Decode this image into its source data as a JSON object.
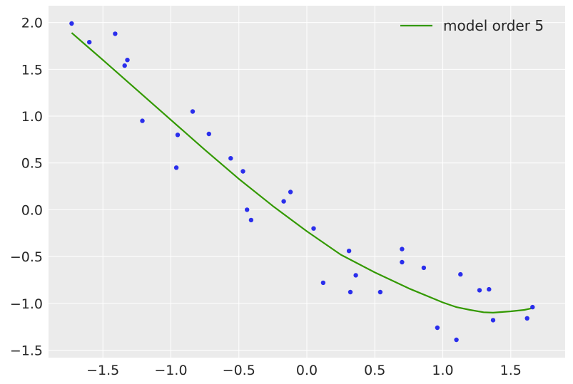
{
  "chart_data": {
    "type": "scatter",
    "title": "",
    "xlabel": "",
    "ylabel": "",
    "xlim": [
      -1.9,
      1.9
    ],
    "ylim": [
      -1.58,
      2.18
    ],
    "xticks": [
      -1.5,
      -1.0,
      -0.5,
      0.0,
      0.5,
      1.0,
      1.5
    ],
    "xtick_labels": [
      "−1.5",
      "−1.0",
      "−0.5",
      "0.0",
      "0.5",
      "1.0",
      "1.5"
    ],
    "yticks": [
      -1.5,
      -1.0,
      -0.5,
      0.0,
      0.5,
      1.0,
      1.5,
      2.0
    ],
    "ytick_labels": [
      "−1.5",
      "−1.0",
      "−0.5",
      "0.0",
      "0.5",
      "1.0",
      "1.5",
      "2.0"
    ],
    "grid": true,
    "legend_position": "top-right",
    "series": [
      {
        "kind": "scatter",
        "color": "#2a2eec",
        "x": [
          -1.73,
          -1.6,
          -1.41,
          -1.34,
          -1.32,
          -1.21,
          -0.96,
          -0.95,
          -0.84,
          -0.72,
          -0.56,
          -0.47,
          -0.44,
          -0.41,
          -0.17,
          -0.12,
          0.05,
          0.12,
          0.31,
          0.32,
          0.36,
          0.54,
          0.7,
          0.7,
          0.86,
          0.96,
          1.1,
          1.13,
          1.27,
          1.34,
          1.37,
          1.62,
          1.66
        ],
        "y": [
          1.99,
          1.79,
          1.88,
          1.54,
          1.6,
          0.95,
          0.45,
          0.8,
          1.05,
          0.81,
          0.55,
          0.41,
          0.0,
          -0.11,
          0.09,
          0.19,
          -0.2,
          -0.78,
          -0.44,
          -0.88,
          -0.7,
          -0.88,
          -0.42,
          -0.56,
          -0.62,
          -1.26,
          -1.39,
          -0.69,
          -0.86,
          -0.85,
          -1.18,
          -1.16,
          -1.04
        ]
      },
      {
        "kind": "line",
        "name": "model order 5",
        "color": "#339900",
        "x": [
          -1.73,
          -1.5,
          -1.25,
          -1.0,
          -0.75,
          -0.5,
          -0.25,
          0.0,
          0.25,
          0.5,
          0.75,
          1.0,
          1.1,
          1.2,
          1.3,
          1.37,
          1.5,
          1.6,
          1.66
        ],
        "y": [
          1.89,
          1.6,
          1.28,
          0.96,
          0.64,
          0.33,
          0.04,
          -0.23,
          -0.48,
          -0.67,
          -0.84,
          -0.99,
          -1.04,
          -1.07,
          -1.095,
          -1.1,
          -1.085,
          -1.07,
          -1.05
        ]
      }
    ]
  }
}
